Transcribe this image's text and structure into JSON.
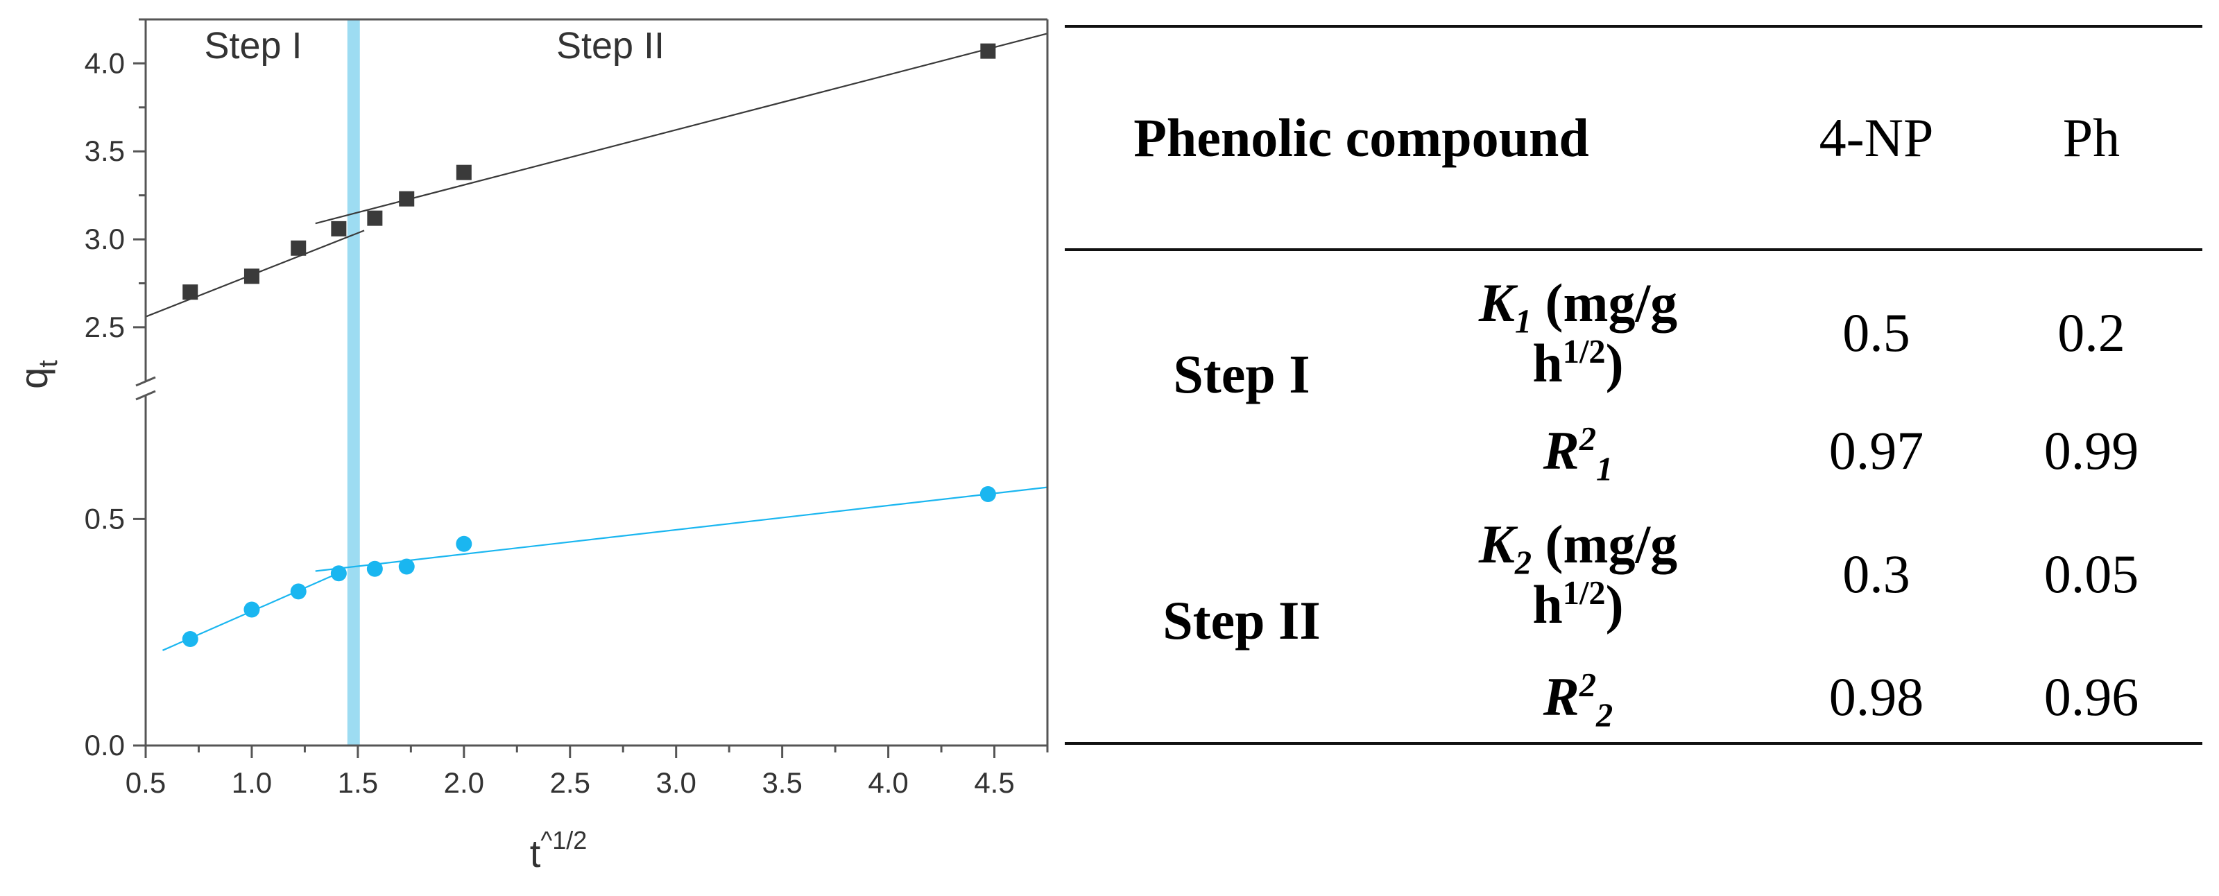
{
  "chart_data": {
    "type": "scatter",
    "xlabel": "t",
    "xlabel_sup": "^1/2",
    "ylabel": "q",
    "ylabel_sub": "t",
    "xlim": [
      0.5,
      4.75
    ],
    "x_ticks": [
      "0.5",
      "1.0",
      "1.5",
      "2.0",
      "2.5",
      "3.0",
      "3.5",
      "4.0",
      "4.5"
    ],
    "y_upper_range": [
      2.2,
      4.25
    ],
    "y_upper_ticks": [
      "2.5",
      "3.0",
      "3.5",
      "4.0"
    ],
    "y_lower_range": [
      0.0,
      0.77
    ],
    "y_lower_ticks": [
      "0.0",
      "0.5"
    ],
    "axis_break": true,
    "divider_x": 1.48,
    "divider_color": "#9ddcf2",
    "region_labels": [
      "Step I",
      "Step II"
    ],
    "series": [
      {
        "marker": "square",
        "color": "#3a3a3a",
        "x": [
          0.71,
          1.0,
          1.22,
          1.41,
          1.58,
          1.73,
          2.0,
          4.47
        ],
        "y": [
          2.7,
          2.79,
          2.95,
          3.06,
          3.12,
          3.23,
          3.38,
          4.07
        ],
        "fits": [
          {
            "x": [
              0.5,
              1.53
            ],
            "y": [
              2.56,
              3.05
            ]
          },
          {
            "x": [
              1.3,
              4.75
            ],
            "y": [
              3.09,
              4.17
            ]
          }
        ]
      },
      {
        "marker": "circle",
        "color": "#1ab6f0",
        "x": [
          0.71,
          1.0,
          1.22,
          1.41,
          1.58,
          1.73,
          2.0,
          4.47
        ],
        "y": [
          0.235,
          0.3,
          0.34,
          0.38,
          0.39,
          0.395,
          0.445,
          0.555
        ],
        "fits": [
          {
            "x": [
              0.58,
              1.43
            ],
            "y": [
              0.21,
              0.385
            ]
          },
          {
            "x": [
              1.3,
              4.75
            ],
            "y": [
              0.385,
              0.57
            ]
          }
        ]
      }
    ]
  },
  "table": {
    "header": {
      "col1": "Phenolic compound",
      "col2": "4-NP",
      "col3": "Ph"
    },
    "step1": {
      "label": "Step I",
      "k_sym": "K",
      "k_sub": "1",
      "k_unit_a": " (mg/g",
      "k_unit_b": "h",
      "k_unit_sup": "1/2",
      "k_unit_close": ")",
      "r_sym": "R",
      "r_sup": "2",
      "r_sub": "1",
      "k_4np": "0.5",
      "k_ph": "0.2",
      "r_4np": "0.97",
      "r_ph": "0.99"
    },
    "step2": {
      "label": "Step II",
      "k_sym": "K",
      "k_sub": "2",
      "k_unit_a": " (mg/g",
      "k_unit_b": "h",
      "k_unit_sup": "1/2",
      "k_unit_close": ")",
      "r_sym": "R",
      "r_sup": "2",
      "r_sub": "2",
      "k_4np": "0.3",
      "k_ph": "0.05",
      "r_4np": "0.98",
      "r_ph": "0.96"
    }
  }
}
